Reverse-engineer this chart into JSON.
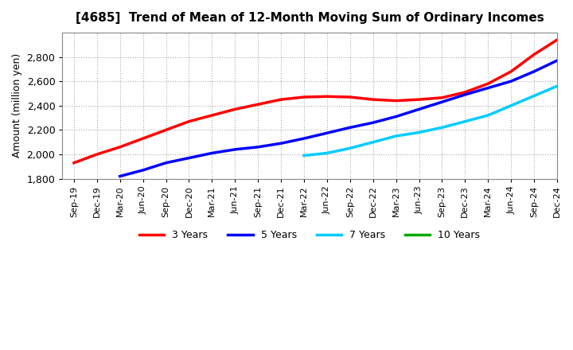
{
  "title": "[4685]  Trend of Mean of 12-Month Moving Sum of Ordinary Incomes",
  "ylabel": "Amount (million yen)",
  "ylim": [
    1800,
    3000
  ],
  "yticks": [
    1800,
    2000,
    2200,
    2400,
    2600,
    2800
  ],
  "x_labels": [
    "Sep-19",
    "Dec-19",
    "Mar-20",
    "Jun-20",
    "Sep-20",
    "Dec-20",
    "Mar-21",
    "Jun-21",
    "Sep-21",
    "Dec-21",
    "Mar-22",
    "Jun-22",
    "Sep-22",
    "Dec-22",
    "Mar-23",
    "Jun-23",
    "Sep-23",
    "Dec-23",
    "Mar-24",
    "Jun-24",
    "Sep-24",
    "Dec-24"
  ],
  "series": {
    "3 Years": {
      "color": "#FF0000",
      "data_x": [
        0,
        1,
        2,
        3,
        4,
        5,
        6,
        7,
        8,
        9,
        10,
        11,
        12,
        13,
        14,
        15,
        16,
        17,
        18,
        19,
        20,
        21
      ],
      "data_y": [
        1930,
        2000,
        2060,
        2130,
        2200,
        2270,
        2320,
        2370,
        2410,
        2450,
        2470,
        2475,
        2470,
        2450,
        2440,
        2450,
        2465,
        2510,
        2580,
        2680,
        2820,
        2940
      ]
    },
    "5 Years": {
      "color": "#0000FF",
      "data_x": [
        2,
        3,
        4,
        5,
        6,
        7,
        8,
        9,
        10,
        11,
        12,
        13,
        14,
        15,
        16,
        17,
        18,
        19,
        20,
        21
      ],
      "data_y": [
        1820,
        1870,
        1930,
        1970,
        2010,
        2040,
        2060,
        2090,
        2130,
        2175,
        2220,
        2260,
        2310,
        2370,
        2430,
        2490,
        2545,
        2600,
        2680,
        2770
      ]
    },
    "7 Years": {
      "color": "#00CCFF",
      "data_x": [
        10,
        11,
        12,
        13,
        14,
        15,
        16,
        17,
        18,
        19,
        20,
        21
      ],
      "data_y": [
        1990,
        2010,
        2050,
        2100,
        2150,
        2180,
        2220,
        2270,
        2320,
        2400,
        2480,
        2560
      ]
    },
    "10 Years": {
      "color": "#00AA00",
      "data_x": [],
      "data_y": []
    }
  },
  "legend_order": [
    "3 Years",
    "5 Years",
    "7 Years",
    "10 Years"
  ],
  "background_color": "#FFFFFF",
  "plot_bg_color": "#FFFFFF",
  "grid_color": "#AAAAAA",
  "linewidth": 2.5
}
